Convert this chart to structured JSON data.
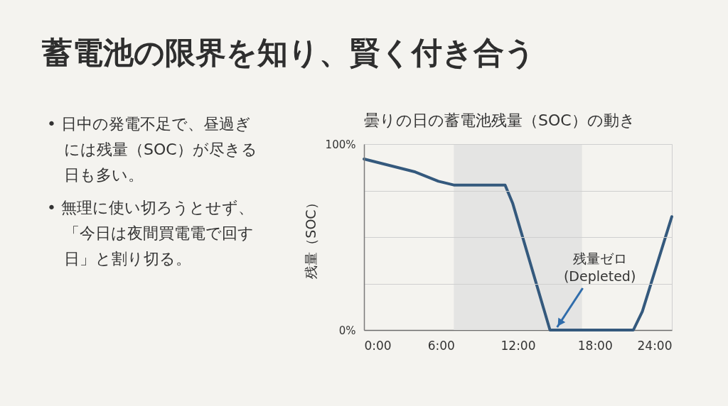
{
  "chart_data": {
    "type": "line",
    "title": "蓄電池の限界を知り、賢く付き合う",
    "subtitle": "曇りの日の蓄電池残量（SOC）の動き",
    "ylabel": "残量（SOC）",
    "x": [
      0,
      4,
      5.8,
      7,
      11,
      11.6,
      14.5,
      21,
      21.7,
      24
    ],
    "series": [
      {
        "color": "#34597d",
        "values": [
          92,
          85,
          80,
          78,
          78,
          68,
          0,
          0,
          10,
          61
        ]
      }
    ],
    "xlim": [
      0,
      24
    ],
    "xticks": [
      {
        "value": 0,
        "label": "0:00"
      },
      {
        "value": 6,
        "label": "6:00"
      },
      {
        "value": 12,
        "label": "12:00"
      },
      {
        "value": 18,
        "label": "18:00"
      },
      {
        "value": 24,
        "label": "24:00"
      }
    ],
    "ylim": [
      0,
      100
    ],
    "yticks": [
      {
        "value": 0,
        "label": "0%"
      },
      {
        "value": 25,
        "label": null
      },
      {
        "value": 50,
        "label": null
      },
      {
        "value": 75,
        "label": null
      },
      {
        "value": 100,
        "label": "100%"
      }
    ],
    "grid": "y",
    "line_style": "solid",
    "bands": [
      {
        "axis": "x",
        "from": 7,
        "to": 17,
        "color": "#e4e4e3"
      }
    ],
    "annotations": [
      "• 日中の発電不足で、昼過ぎには残量（SOC）が尽きる日も多い。",
      "• 無理に使い切ろうとせず、「今日は夜間買電電で回す日」と割り切る。",
      {
        "text": "残量ゼロ\n(Depleted)",
        "x": 15,
        "y": 0
      }
    ]
  }
}
